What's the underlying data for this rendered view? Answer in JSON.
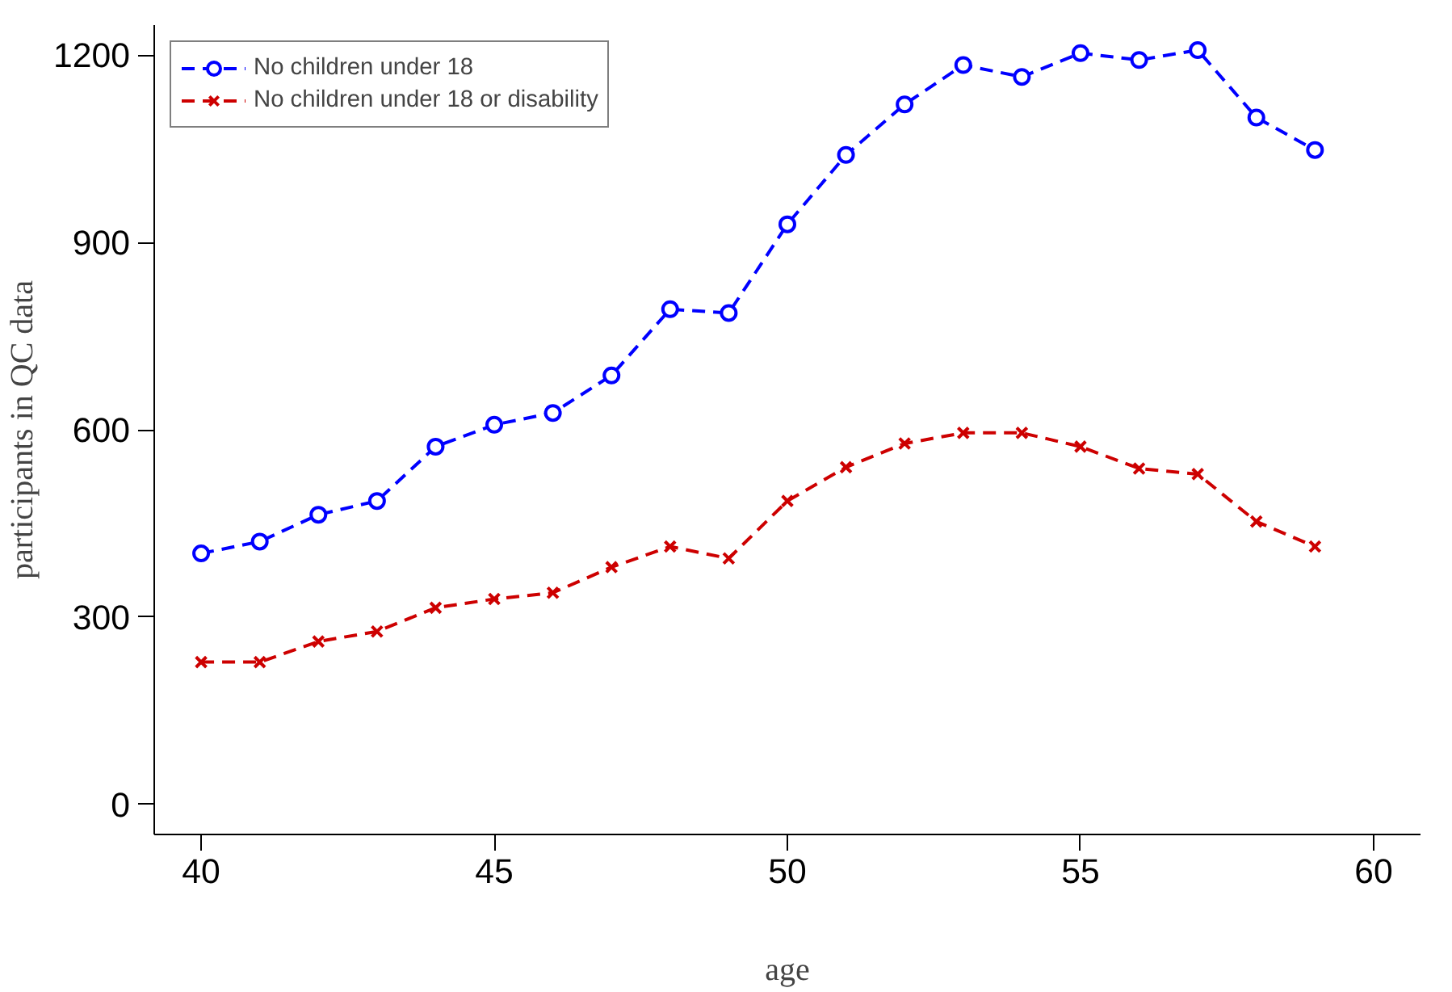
{
  "chart_data": {
    "type": "line",
    "xlabel": "age",
    "ylabel": "participants in QC data",
    "x": [
      40,
      41,
      42,
      43,
      44,
      45,
      46,
      47,
      48,
      49,
      50,
      51,
      52,
      53,
      54,
      55,
      56,
      57,
      58,
      59
    ],
    "series": [
      {
        "name": "No children under 18",
        "color": "#0000ff",
        "marker": "circle",
        "line_style": "dashed",
        "values": [
          402,
          421,
          464,
          486,
          573,
          608,
          627,
          687,
          793,
          787,
          929,
          1040,
          1121,
          1184,
          1165,
          1203,
          1192,
          1208,
          1100,
          1048
        ]
      },
      {
        "name": "No children under 18 or disability",
        "color": "#cd0000",
        "marker": "cross",
        "line_style": "dashed",
        "values": [
          228,
          228,
          261,
          277,
          315,
          329,
          339,
          380,
          413,
          394,
          486,
          540,
          578,
          595,
          595,
          573,
          538,
          529,
          453,
          413
        ]
      }
    ],
    "xlim": [
      39.2,
      60.8
    ],
    "ylim": [
      -48,
      1248
    ],
    "xticks": [
      40,
      45,
      50,
      55,
      60
    ],
    "yticks": [
      0,
      300,
      600,
      900,
      1200
    ],
    "grid": false,
    "legend": "top left"
  }
}
